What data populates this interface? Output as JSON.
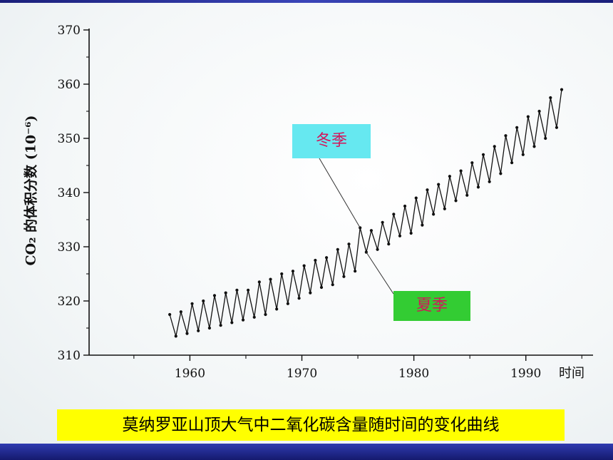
{
  "chart_data": {
    "type": "line",
    "title": "",
    "xlabel": "时间",
    "ylabel": "CO₂ 的体积分数 (10⁻⁶)",
    "ylim": [
      310,
      370
    ],
    "xlim": [
      1951,
      1996
    ],
    "xticks": [
      1960,
      1970,
      1980,
      1990
    ],
    "yticks": [
      310,
      320,
      330,
      340,
      350,
      360,
      370
    ],
    "grid": false,
    "line_color": "#111111",
    "series": [
      {
        "values_note": "",
        "x": [
          1958.2,
          1958.75,
          1959.2,
          1959.75,
          1960.2,
          1960.75,
          1961.2,
          1961.75,
          1962.2,
          1962.75,
          1963.2,
          1963.75,
          1964.2,
          1964.75,
          1965.2,
          1965.75,
          1966.2,
          1966.75,
          1967.2,
          1967.75,
          1968.2,
          1968.75,
          1969.2,
          1969.75,
          1970.2,
          1970.75,
          1971.2,
          1971.75,
          1972.2,
          1972.75,
          1973.2,
          1973.75,
          1974.2,
          1974.75,
          1975.2,
          1975.75,
          1976.2,
          1976.75,
          1977.2,
          1977.75,
          1978.2,
          1978.75,
          1979.2,
          1979.75,
          1980.2,
          1980.75,
          1981.2,
          1981.75,
          1982.2,
          1982.75,
          1983.2,
          1983.75,
          1984.2,
          1984.75,
          1985.2,
          1985.75,
          1986.2,
          1986.75,
          1987.2,
          1987.75,
          1988.2,
          1988.75,
          1989.2,
          1989.75,
          1990.2,
          1990.75,
          1991.2,
          1991.75,
          1992.2,
          1992.75,
          1993.2
        ],
        "y": [
          317.5,
          313.5,
          318.0,
          314.0,
          319.5,
          314.5,
          320.0,
          315.0,
          321.0,
          315.5,
          321.5,
          316.0,
          322.0,
          316.5,
          322.0,
          317.0,
          323.5,
          317.5,
          324.0,
          318.5,
          325.0,
          319.5,
          325.5,
          320.5,
          326.5,
          321.5,
          327.5,
          322.5,
          328.0,
          323.0,
          329.5,
          324.5,
          330.5,
          325.5,
          333.5,
          329.0,
          333.0,
          329.5,
          334.5,
          330.5,
          336.0,
          332.0,
          337.5,
          332.5,
          339.0,
          334.0,
          340.5,
          336.0,
          341.5,
          337.0,
          343.0,
          338.5,
          344.0,
          339.5,
          345.5,
          341.0,
          347.0,
          342.0,
          348.5,
          343.5,
          350.5,
          345.5,
          352.0,
          347.0,
          354.0,
          348.5,
          355.0,
          350.0,
          357.5,
          352.0,
          359.0
        ]
      }
    ],
    "annotations": [
      {
        "text": "冬季",
        "x": 1975.2,
        "y": 333.5,
        "color": "#d4145a",
        "box": "#66e8f0"
      },
      {
        "text": "夏季",
        "x": 1975.75,
        "y": 329.0,
        "color": "#d4145a",
        "box": "#33cc33"
      }
    ]
  },
  "caption": "莫纳罗亚山顶大气中二氧化碳含量随时间的变化曲线"
}
